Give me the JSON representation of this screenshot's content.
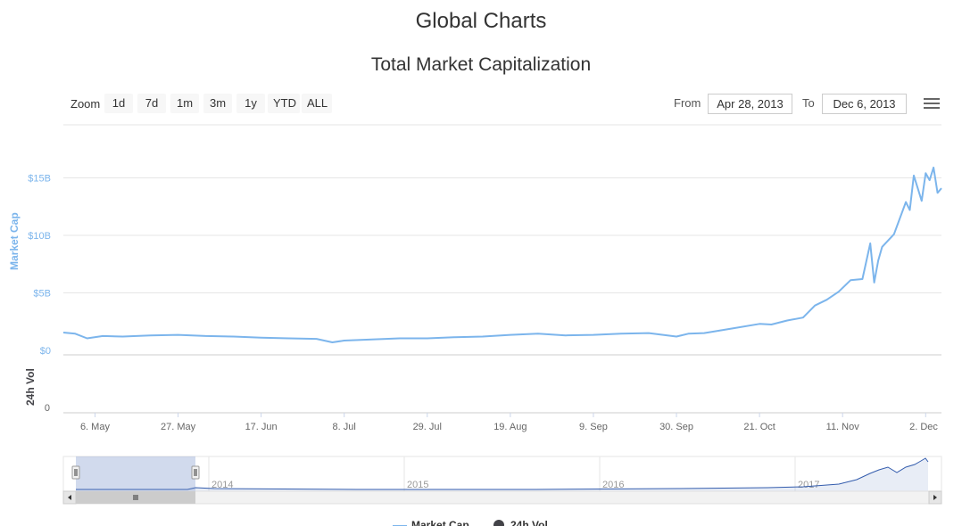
{
  "page": {
    "title": "Global Charts"
  },
  "toolbar": {
    "zoom_label": "Zoom",
    "zoom_buttons": [
      "1d",
      "7d",
      "1m",
      "3m",
      "1y",
      "YTD",
      "ALL"
    ],
    "from_label": "From",
    "from_value": "Apr 28, 2013",
    "to_label": "To",
    "to_value": "Dec 6, 2013",
    "menu_icon": "hamburger-menu-icon"
  },
  "colors": {
    "market_cap": "#7cb5ec",
    "volume": "#434348",
    "navigator_line": "#335cad",
    "navigator_mask": "rgba(102,133,194,0.3)"
  },
  "chart_data": {
    "type": "line",
    "title": "Total Market Capitalization",
    "x_start": "2013-04-28",
    "x_end": "2013-12-06",
    "xtick_labels": [
      "6. May",
      "27. May",
      "17. Jun",
      "8. Jul",
      "29. Jul",
      "19. Aug",
      "9. Sep",
      "30. Sep",
      "21. Oct",
      "11. Nov",
      "2. Dec"
    ],
    "xtick_dates": [
      "2013-05-06",
      "2013-05-27",
      "2013-06-17",
      "2013-07-08",
      "2013-07-29",
      "2013-08-19",
      "2013-09-09",
      "2013-09-30",
      "2013-10-21",
      "2013-11-11",
      "2013-12-02"
    ],
    "y_axis": {
      "label": "Market Cap",
      "tick_labels": [
        "$0",
        "$5B",
        "$10B",
        "$15B"
      ],
      "tick_values": [
        0,
        5,
        10,
        15
      ],
      "unit": "billion USD",
      "range": [
        0,
        19
      ]
    },
    "volume_axis": {
      "label": "24h Vol",
      "tick_labels": [
        "0"
      ]
    },
    "series": [
      {
        "name": "Market Cap",
        "x": [
          "2013-04-28",
          "2013-05-01",
          "2013-05-04",
          "2013-05-08",
          "2013-05-13",
          "2013-05-20",
          "2013-05-27",
          "2013-06-03",
          "2013-06-10",
          "2013-06-17",
          "2013-06-24",
          "2013-07-01",
          "2013-07-05",
          "2013-07-08",
          "2013-07-15",
          "2013-07-22",
          "2013-07-29",
          "2013-08-05",
          "2013-08-12",
          "2013-08-19",
          "2013-08-26",
          "2013-09-02",
          "2013-09-09",
          "2013-09-16",
          "2013-09-23",
          "2013-09-30",
          "2013-10-03",
          "2013-10-07",
          "2013-10-14",
          "2013-10-21",
          "2013-10-24",
          "2013-10-28",
          "2013-11-01",
          "2013-11-04",
          "2013-11-07",
          "2013-11-10",
          "2013-11-13",
          "2013-11-16",
          "2013-11-18",
          "2013-11-19",
          "2013-11-20",
          "2013-11-21",
          "2013-11-24",
          "2013-11-27",
          "2013-11-28",
          "2013-11-29",
          "2013-11-30",
          "2013-12-01",
          "2013-12-02",
          "2013-12-03",
          "2013-12-04",
          "2013-12-05",
          "2013-12-06"
        ],
        "values": [
          1.55,
          1.45,
          1.05,
          1.25,
          1.2,
          1.3,
          1.35,
          1.25,
          1.2,
          1.1,
          1.05,
          1.0,
          0.7,
          0.85,
          0.95,
          1.05,
          1.05,
          1.15,
          1.2,
          1.35,
          1.45,
          1.3,
          1.35,
          1.45,
          1.5,
          1.2,
          1.45,
          1.5,
          1.9,
          2.3,
          2.25,
          2.6,
          2.85,
          3.9,
          4.4,
          5.1,
          6.1,
          6.2,
          9.3,
          5.9,
          7.8,
          9.0,
          10.1,
          12.9,
          12.2,
          15.2,
          14.1,
          13.0,
          15.4,
          14.8,
          15.9,
          13.7,
          14.1
        ]
      },
      {
        "name": "24h Vol"
      }
    ],
    "navigator": {
      "year_labels": [
        "2014",
        "2015",
        "2016",
        "2017"
      ],
      "selection_start": "2013-04-28",
      "selection_end": "2013-12-06"
    },
    "legend": {
      "position": "bottom-center",
      "items": [
        "Market Cap",
        "24h Vol"
      ]
    },
    "grid": true
  }
}
